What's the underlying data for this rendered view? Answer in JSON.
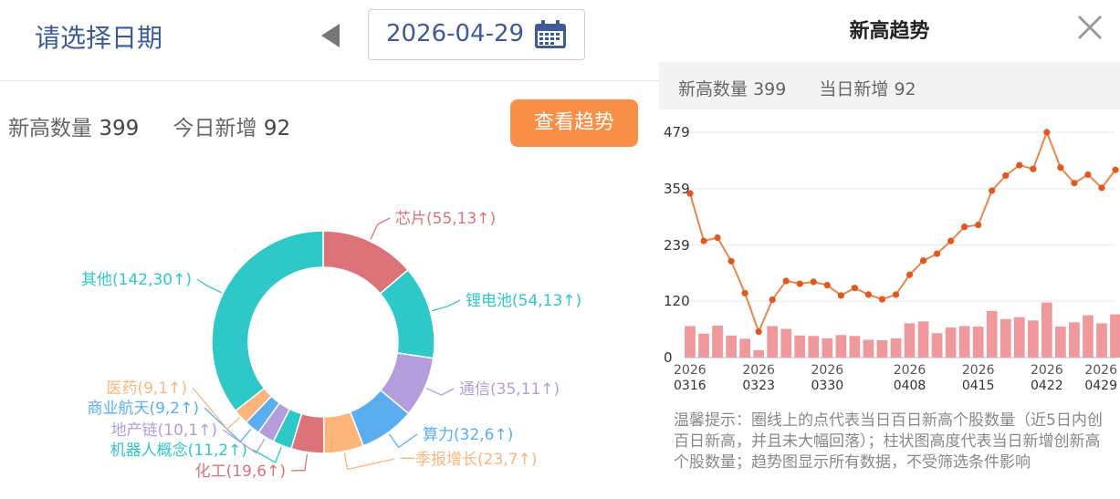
{
  "header": {
    "title": "请选择日期",
    "date": "2026-04-29"
  },
  "stats": {
    "new_high_label": "新高数量",
    "new_high_value": "399",
    "today_label": "今日新增",
    "today_value": "92"
  },
  "trend_button": "查看趋势",
  "panel": {
    "title": "新高趋势",
    "stat_new_high_label": "新高数量",
    "stat_new_high_value": "399",
    "stat_today_label": "当日新增",
    "stat_today_value": "92",
    "tip": "温馨提示：圈线上的点代表当日百日新高个股数量（近5日内创百日新高，并且未大幅回落）；柱状图高度代表当日新增创新高个股数量；趋势图显示所有数据，不受筛选条件影响"
  },
  "chart_data": [
    {
      "type": "pie",
      "title": "",
      "donut": true,
      "slices": [
        {
          "label": "芯片(55,13↑)",
          "value": 55,
          "color": "#db7379"
        },
        {
          "label": "锂电池(54,13↑)",
          "value": 54,
          "color": "#2ec8c9"
        },
        {
          "label": "通信(35,11↑)",
          "value": 35,
          "color": "#b39ddb"
        },
        {
          "label": "算力(32,6↑)",
          "value": 32,
          "color": "#5aaef0"
        },
        {
          "label": "一季报增长(23,7↑)",
          "value": 23,
          "color": "#fdb57c"
        },
        {
          "label": "化工(19,6↑)",
          "value": 19,
          "color": "#db7379"
        },
        {
          "label": "机器人概念(11,2↑)",
          "value": 11,
          "color": "#2ec8c9"
        },
        {
          "label": "地产链(10,1↑)",
          "value": 10,
          "color": "#b39ddb"
        },
        {
          "label": "商业航天(9,2↑)",
          "value": 9,
          "color": "#5aaef0"
        },
        {
          "label": "医药(9,1↑)",
          "value": 9,
          "color": "#fdb57c"
        },
        {
          "label": "其他(142,30↑)",
          "value": 142,
          "color": "#2ec8c9"
        }
      ]
    },
    {
      "type": "line",
      "title": "",
      "ylim": [
        0,
        479
      ],
      "yticks": [
        0,
        120,
        239,
        359,
        479
      ],
      "grid": true,
      "x_tick_labels": [
        {
          "year": "2026",
          "md": "0316"
        },
        {
          "year": "2026",
          "md": "0323"
        },
        {
          "year": "2026",
          "md": "0330"
        },
        {
          "year": "2026",
          "md": "0408"
        },
        {
          "year": "2026",
          "md": "0415"
        },
        {
          "year": "2026",
          "md": "0422"
        },
        {
          "year": "2026",
          "md": "0429"
        }
      ],
      "x": [
        "0316",
        "0317",
        "0318",
        "0319",
        "0320",
        "0323",
        "0324",
        "0325",
        "0326",
        "0327",
        "0330",
        "0331",
        "0401",
        "0402",
        "0403",
        "0407",
        "0408",
        "0409",
        "0410",
        "0413",
        "0414",
        "0415",
        "0416",
        "0417",
        "0420",
        "0421",
        "0422",
        "0423",
        "0424",
        "0427",
        "0428",
        "0429"
      ],
      "series": [
        {
          "kind": "line",
          "color": "#e8864a",
          "values": [
            349,
            248,
            255,
            205,
            137,
            55,
            123,
            163,
            157,
            161,
            154,
            132,
            148,
            134,
            124,
            134,
            176,
            206,
            221,
            248,
            278,
            282,
            355,
            387,
            409,
            401,
            479,
            404,
            371,
            389,
            361,
            399
          ]
        },
        {
          "kind": "bar",
          "color": "#f0999c",
          "values": [
            67,
            51,
            68,
            47,
            40,
            16,
            67,
            61,
            47,
            46,
            41,
            48,
            46,
            38,
            37,
            41,
            73,
            77,
            52,
            64,
            67,
            66,
            99,
            82,
            86,
            79,
            117,
            66,
            75,
            90,
            73,
            92
          ]
        }
      ]
    }
  ]
}
